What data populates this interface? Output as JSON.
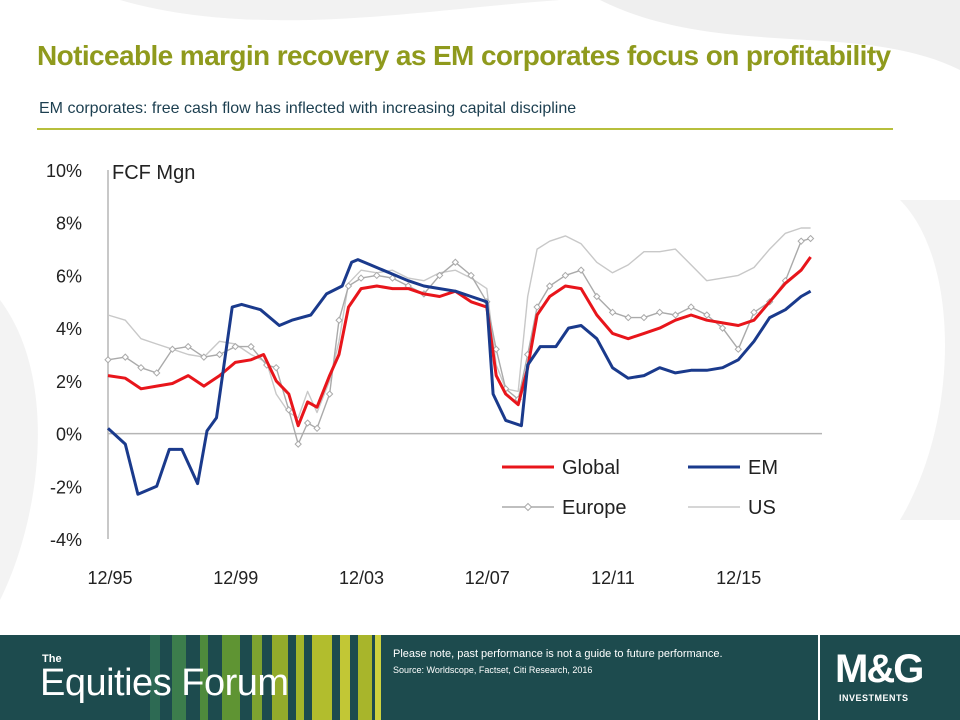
{
  "slide": {
    "title": "Noticeable margin recovery as EM corporates focus on profitability",
    "subtitle": "EM corporates: free cash flow has inflected with increasing capital discipline"
  },
  "colors": {
    "title": "#8f9a1d",
    "footer_bg": "#1d4b4e",
    "global": "#e8151b",
    "em": "#1a3a8c",
    "europe": "#aaaaaa",
    "us": "#c8c8c8"
  },
  "chart_data": {
    "type": "line",
    "title": "FCF Mgn",
    "xlabel": "",
    "ylabel": "",
    "unit": "%",
    "ylim": [
      -4,
      10
    ],
    "yticks": [
      -4,
      -2,
      0,
      2,
      4,
      6,
      8,
      10
    ],
    "ytick_labels": [
      "-4%",
      "-2%",
      "0%",
      "2%",
      "4%",
      "6%",
      "8%",
      "10%"
    ],
    "xlim": [
      1995.95,
      2018.6
    ],
    "xticks": [
      1995.95,
      1999.95,
      2003.95,
      2007.95,
      2011.95,
      2015.95
    ],
    "xtick_labels": [
      "12/95",
      "12/99",
      "12/03",
      "12/07",
      "12/11",
      "12/15"
    ],
    "legend_position": "bottom-right",
    "series": [
      {
        "name": "Global",
        "color": "#e8151b",
        "x": [
          1995.95,
          1996.5,
          1997.0,
          1997.5,
          1998.0,
          1998.5,
          1999.0,
          1999.5,
          2000.0,
          2000.5,
          2000.9,
          2001.3,
          2001.7,
          2002.0,
          2002.3,
          2002.6,
          2003.0,
          2003.3,
          2003.6,
          2004.0,
          2004.5,
          2005.0,
          2005.5,
          2006.0,
          2006.5,
          2007.0,
          2007.5,
          2008.0,
          2008.3,
          2008.6,
          2009.0,
          2009.3,
          2009.6,
          2010.0,
          2010.5,
          2011.0,
          2011.5,
          2012.0,
          2012.5,
          2013.0,
          2013.5,
          2014.0,
          2014.5,
          2015.0,
          2015.5,
          2016.0,
          2016.5,
          2017.0,
          2017.5,
          2018.0,
          2018.3
        ],
        "y": [
          2.2,
          2.1,
          1.7,
          1.8,
          1.9,
          2.2,
          1.8,
          2.2,
          2.7,
          2.8,
          3.0,
          2.0,
          1.5,
          0.3,
          1.2,
          1.0,
          2.2,
          3.0,
          4.8,
          5.5,
          5.6,
          5.5,
          5.5,
          5.3,
          5.2,
          5.4,
          5.0,
          4.8,
          2.2,
          1.5,
          1.1,
          2.5,
          4.5,
          5.2,
          5.6,
          5.5,
          4.5,
          3.8,
          3.6,
          3.8,
          4.0,
          4.3,
          4.5,
          4.3,
          4.2,
          4.1,
          4.3,
          5.0,
          5.7,
          6.2,
          6.7
        ]
      },
      {
        "name": "EM",
        "color": "#1a3a8c",
        "x": [
          1995.95,
          1996.5,
          1996.9,
          1997.5,
          1997.9,
          1998.3,
          1998.8,
          1999.1,
          1999.4,
          1999.9,
          2000.2,
          2000.8,
          2001.4,
          2001.8,
          2002.4,
          2002.9,
          2003.4,
          2003.7,
          2003.9,
          2004.3,
          2004.9,
          2005.5,
          2006.0,
          2006.5,
          2007.0,
          2007.5,
          2008.0,
          2008.2,
          2008.6,
          2009.1,
          2009.3,
          2009.7,
          2010.2,
          2010.6,
          2011.0,
          2011.5,
          2012.0,
          2012.5,
          2013.0,
          2013.5,
          2014.0,
          2014.5,
          2015.0,
          2015.5,
          2016.0,
          2016.5,
          2017.0,
          2017.5,
          2018.0,
          2018.3
        ],
        "y": [
          0.2,
          -0.4,
          -2.3,
          -2.0,
          -0.6,
          -0.6,
          -1.9,
          0.1,
          0.6,
          4.8,
          4.9,
          4.7,
          4.1,
          4.3,
          4.5,
          5.3,
          5.6,
          6.5,
          6.6,
          6.4,
          6.1,
          5.8,
          5.6,
          5.5,
          5.4,
          5.2,
          5.0,
          1.5,
          0.5,
          0.3,
          2.6,
          3.3,
          3.3,
          4.0,
          4.1,
          3.6,
          2.5,
          2.1,
          2.2,
          2.5,
          2.3,
          2.4,
          2.4,
          2.5,
          2.8,
          3.5,
          4.4,
          4.7,
          5.2,
          5.4
        ]
      },
      {
        "name": "Europe",
        "color": "#aaaaaa",
        "x": [
          1995.95,
          1996.5,
          1997.0,
          1997.5,
          1998.0,
          1998.5,
          1999.0,
          1999.5,
          2000.0,
          2000.5,
          2001.0,
          2001.3,
          2001.7,
          2002.0,
          2002.3,
          2002.6,
          2003.0,
          2003.3,
          2003.6,
          2004.0,
          2004.5,
          2005.0,
          2005.5,
          2006.0,
          2006.5,
          2007.0,
          2007.5,
          2008.0,
          2008.3,
          2008.6,
          2009.0,
          2009.3,
          2009.6,
          2010.0,
          2010.5,
          2011.0,
          2011.5,
          2012.0,
          2012.5,
          2013.0,
          2013.5,
          2014.0,
          2014.5,
          2015.0,
          2015.5,
          2016.0,
          2016.5,
          2017.0,
          2017.5,
          2018.0,
          2018.3
        ],
        "y": [
          2.8,
          2.9,
          2.5,
          2.3,
          3.2,
          3.3,
          2.9,
          3.0,
          3.3,
          3.3,
          2.6,
          2.5,
          0.9,
          -0.4,
          0.4,
          0.2,
          1.5,
          4.3,
          5.6,
          5.9,
          6.0,
          5.9,
          5.6,
          5.3,
          6.0,
          6.5,
          6.0,
          5.0,
          3.2,
          1.7,
          1.3,
          3.0,
          4.8,
          5.6,
          6.0,
          6.2,
          5.2,
          4.6,
          4.4,
          4.4,
          4.6,
          4.5,
          4.8,
          4.5,
          4.0,
          3.2,
          4.6,
          5.0,
          5.8,
          7.3,
          7.4
        ]
      },
      {
        "name": "US",
        "color": "#c8c8c8",
        "x": [
          1995.95,
          1996.5,
          1997.0,
          1997.5,
          1998.0,
          1998.5,
          1999.0,
          1999.5,
          2000.0,
          2000.5,
          2001.0,
          2001.3,
          2001.7,
          2002.0,
          2002.3,
          2002.6,
          2003.0,
          2003.3,
          2003.6,
          2004.0,
          2004.5,
          2005.0,
          2005.5,
          2006.0,
          2006.5,
          2007.0,
          2007.5,
          2008.0,
          2008.3,
          2008.6,
          2009.0,
          2009.3,
          2009.6,
          2010.0,
          2010.5,
          2011.0,
          2011.5,
          2012.0,
          2012.5,
          2013.0,
          2013.5,
          2014.0,
          2014.5,
          2015.0,
          2015.5,
          2016.0,
          2016.5,
          2017.0,
          2017.5,
          2018.0,
          2018.3
        ],
        "y": [
          4.5,
          4.3,
          3.6,
          3.4,
          3.2,
          3.0,
          2.9,
          3.5,
          3.4,
          3.0,
          2.7,
          1.5,
          0.8,
          0.6,
          1.6,
          0.8,
          2.0,
          3.5,
          5.7,
          6.2,
          6.1,
          6.2,
          5.9,
          5.8,
          6.1,
          6.2,
          5.9,
          5.5,
          2.6,
          1.7,
          1.6,
          5.2,
          7.0,
          7.3,
          7.5,
          7.2,
          6.5,
          6.1,
          6.4,
          6.9,
          6.9,
          7.0,
          6.4,
          5.8,
          5.9,
          6.0,
          6.3,
          7.0,
          7.6,
          7.8,
          7.8
        ]
      }
    ]
  },
  "footer": {
    "brand_small": "The",
    "brand_large": "Equities Forum",
    "disclaimer": "Please note, past performance  is not a guide to future performance.",
    "source": "Source: Worldscope, Factset, Citi Research, 2016",
    "logo_mark": "M&G",
    "logo_sub": "INVESTMENTS"
  }
}
